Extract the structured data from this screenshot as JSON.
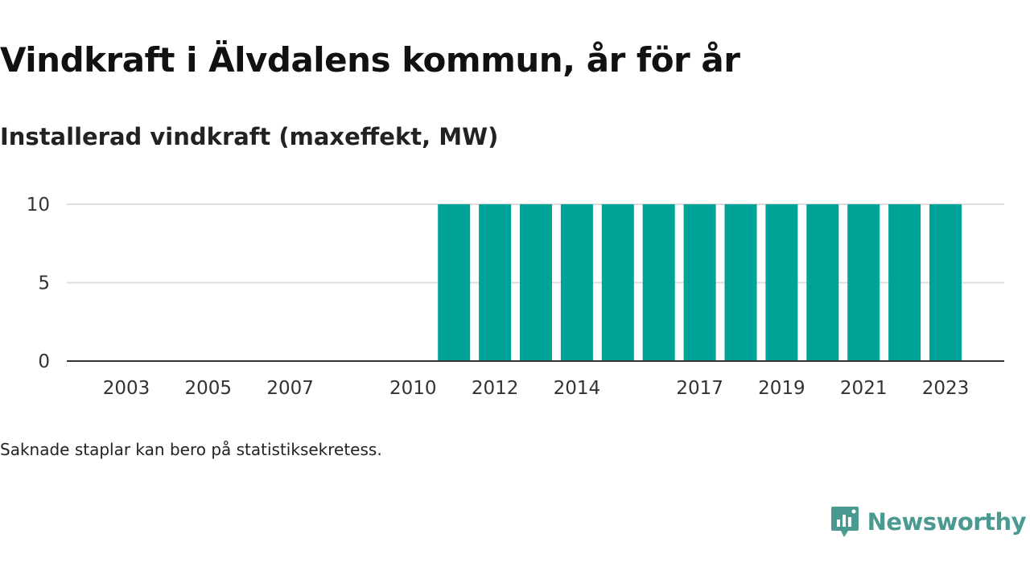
{
  "header": {
    "title": "Vindkraft i Älvdalens kommun, år för år",
    "subtitle": "Installerad vindkraft (maxeffekt, MW)"
  },
  "footer": {
    "note": "Saknade staplar kan bero på statistiksekretess.",
    "brand": "Newsworthy",
    "brand_icon": "newsworthy-chart-bubble-icon"
  },
  "colors": {
    "bar": "#00a398",
    "gridline": "#dddddd",
    "axis": "#333333",
    "brand": "#4a9a92"
  },
  "chart_data": {
    "type": "bar",
    "categories": [
      "2003",
      "2004",
      "2005",
      "2006",
      "2007",
      "2008",
      "2009",
      "2010",
      "2011",
      "2012",
      "2013",
      "2014",
      "2015",
      "2016",
      "2017",
      "2018",
      "2019",
      "2020",
      "2021",
      "2022",
      "2023"
    ],
    "values": [
      0,
      0,
      0,
      0,
      0,
      0,
      0,
      0,
      10,
      10,
      10,
      10,
      10,
      10,
      10,
      10,
      10,
      10,
      10,
      10,
      10
    ],
    "x_tick_labels": [
      "2003",
      "2005",
      "2007",
      "2010",
      "2012",
      "2014",
      "2017",
      "2019",
      "2021",
      "2023"
    ],
    "y_ticks": [
      0,
      5,
      10
    ],
    "ylim": [
      0,
      10
    ],
    "grid": true,
    "title": "Vindkraft i Älvdalens kommun, år för år",
    "ylabel": "Installerad vindkraft (maxeffekt, MW)",
    "xlabel": ""
  }
}
